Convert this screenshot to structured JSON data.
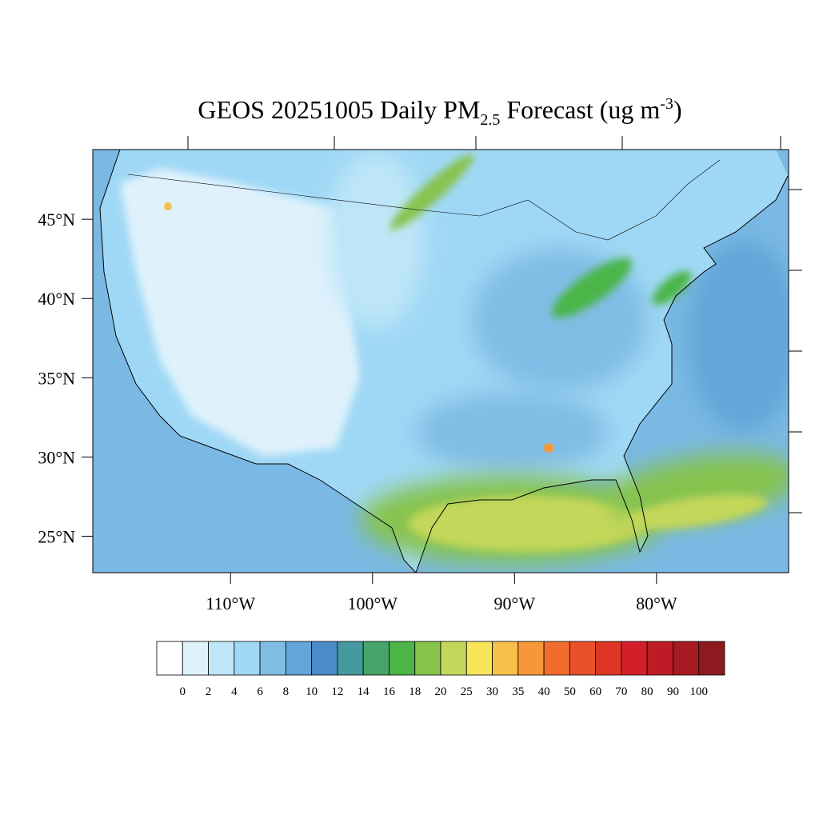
{
  "title": {
    "parts": [
      "GEOS 20251005 Daily PM",
      "2.5",
      " Forecast (ug m",
      "-3",
      ")"
    ]
  },
  "map": {
    "lon_range": [
      -119.7,
      -70.7
    ],
    "lat_range": [
      22.7,
      49.4
    ],
    "lat_ticks": [
      {
        "value": 45,
        "label": "45°N"
      },
      {
        "value": 40,
        "label": "40°N"
      },
      {
        "value": 35,
        "label": "35°N"
      },
      {
        "value": 30,
        "label": "30°N"
      },
      {
        "value": 25,
        "label": "25°N"
      }
    ],
    "lon_ticks": [
      {
        "value": -110,
        "label": "110°W"
      },
      {
        "value": -100,
        "label": "100°W"
      },
      {
        "value": -90,
        "label": "90°W"
      },
      {
        "value": -80,
        "label": "80°W"
      }
    ]
  },
  "colorbar": {
    "levels": [
      0,
      2,
      4,
      6,
      8,
      10,
      12,
      14,
      16,
      18,
      20,
      25,
      30,
      35,
      40,
      50,
      60,
      70,
      80,
      90,
      100
    ],
    "colors": [
      "#ffffff",
      "#dff2fc",
      "#bfe6f8",
      "#9fd8f5",
      "#80bde5",
      "#62a5d8",
      "#4a8bc8",
      "#459a9e",
      "#47a46a",
      "#4cb548",
      "#86c34d",
      "#c3d75a",
      "#f9e55a",
      "#f8bf4c",
      "#f6973b",
      "#f26d2d",
      "#e9512b",
      "#de3526",
      "#d31f2a",
      "#bf1b27",
      "#a81a22",
      "#8d1a1e"
    ]
  }
}
